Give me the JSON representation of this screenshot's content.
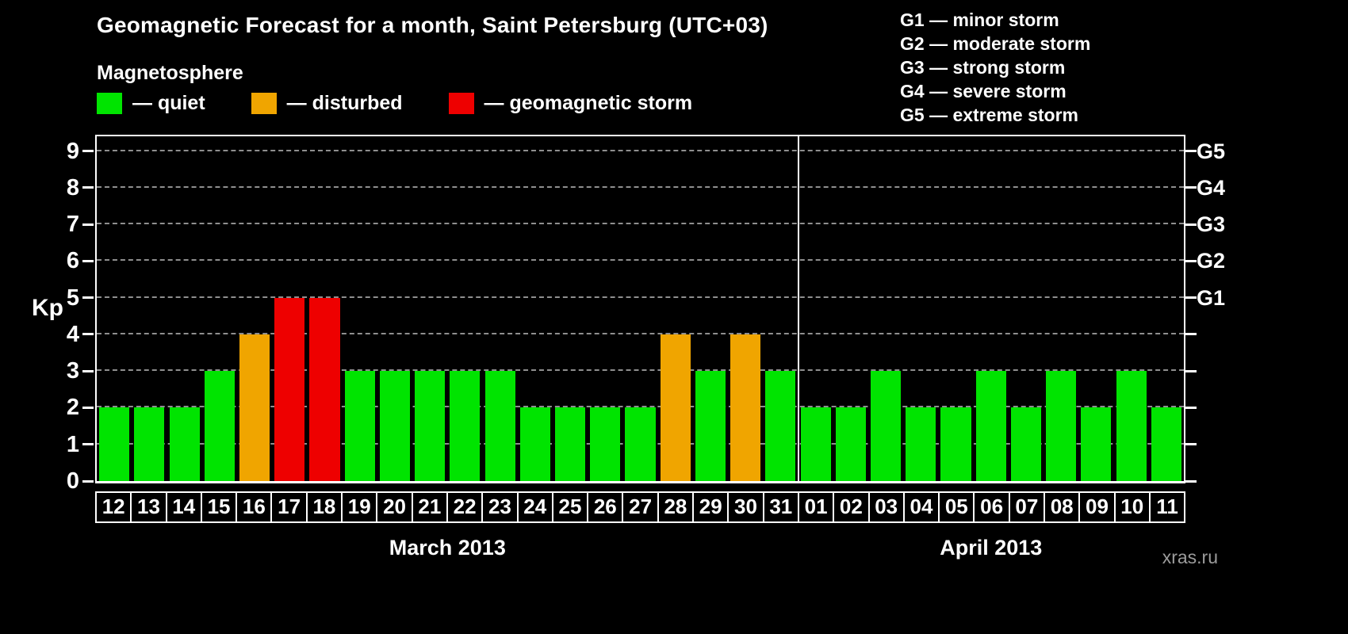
{
  "header": {
    "title": "Geomagnetic Forecast for a month, Saint Petersburg (UTC+03)",
    "subtitle": "Magnetosphere"
  },
  "magnetosphere_legend": [
    {
      "state": "quiet",
      "label": "— quiet",
      "color": "#00e400"
    },
    {
      "state": "disturbed",
      "label": "— disturbed",
      "color": "#f0a500"
    },
    {
      "state": "storm",
      "label": "— geomagnetic storm",
      "color": "#ee0000"
    }
  ],
  "g_legend": [
    "G1 — minor storm",
    "G2 — moderate storm",
    "G3 — strong storm",
    "G4 — severe storm",
    "G5 — extreme storm"
  ],
  "axes": {
    "y_label": "Kp",
    "y_ticks": [
      0,
      1,
      2,
      3,
      4,
      5,
      6,
      7,
      8,
      9
    ],
    "right_scale": [
      {
        "label": "G1",
        "value": 5
      },
      {
        "label": "G2",
        "value": 6
      },
      {
        "label": "G3",
        "value": 7
      },
      {
        "label": "G4",
        "value": 8
      },
      {
        "label": "G5",
        "value": 9
      }
    ]
  },
  "watermark": "xras.ru",
  "chart_data": {
    "type": "bar",
    "title": "Geomagnetic Forecast for a month, Saint Petersburg (UTC+03)",
    "xlabel": "",
    "ylabel": "Kp",
    "ylim": [
      0,
      9
    ],
    "grid": true,
    "legend_position": "top-left",
    "months": [
      {
        "label": "March 2013",
        "count": 20
      },
      {
        "label": "April 2013",
        "count": 11
      }
    ],
    "categories": [
      "12",
      "13",
      "14",
      "15",
      "16",
      "17",
      "18",
      "19",
      "20",
      "21",
      "22",
      "23",
      "24",
      "25",
      "26",
      "27",
      "28",
      "29",
      "30",
      "31",
      "01",
      "02",
      "03",
      "04",
      "05",
      "06",
      "07",
      "08",
      "09",
      "10",
      "11"
    ],
    "values": [
      2,
      2,
      2,
      3,
      4,
      5,
      5,
      3,
      3,
      3,
      3,
      3,
      2,
      2,
      2,
      2,
      4,
      3,
      4,
      3,
      2,
      2,
      3,
      2,
      2,
      3,
      2,
      3,
      2,
      3,
      2
    ],
    "states": [
      "quiet",
      "quiet",
      "quiet",
      "quiet",
      "disturbed",
      "storm",
      "storm",
      "quiet",
      "quiet",
      "quiet",
      "quiet",
      "quiet",
      "quiet",
      "quiet",
      "quiet",
      "quiet",
      "disturbed",
      "quiet",
      "disturbed",
      "quiet",
      "quiet",
      "quiet",
      "quiet",
      "quiet",
      "quiet",
      "quiet",
      "quiet",
      "quiet",
      "quiet",
      "quiet",
      "quiet"
    ]
  }
}
